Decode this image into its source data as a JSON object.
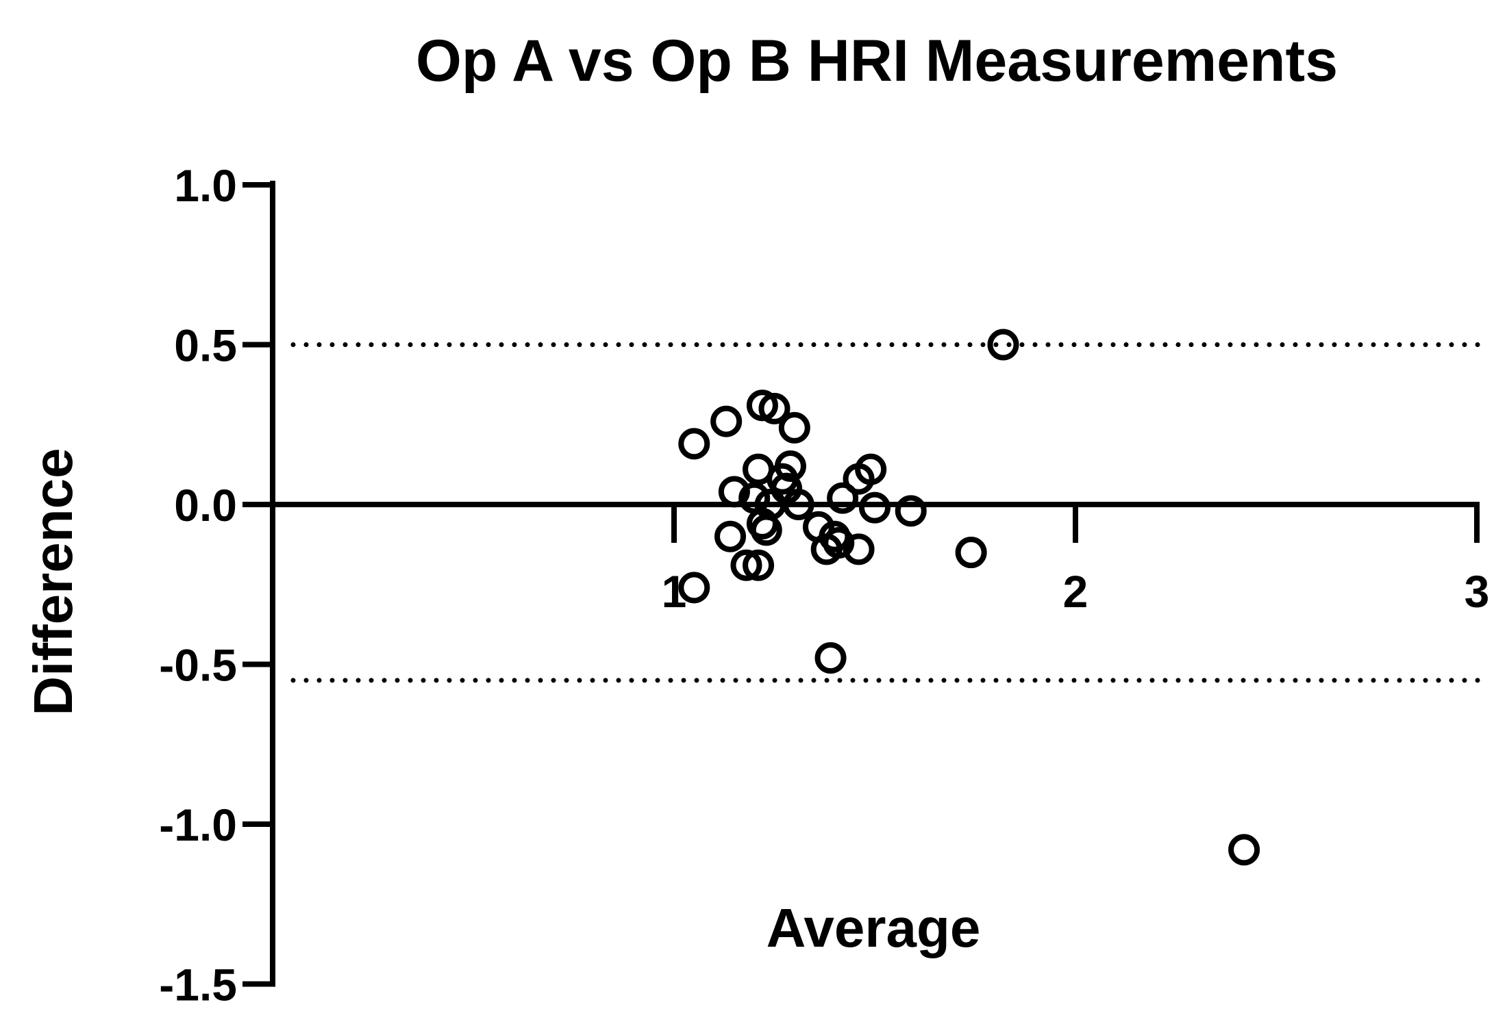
{
  "chart_data": {
    "type": "scatter",
    "title": "Op A vs Op B HRI Measurements",
    "xlabel": "Average",
    "ylabel": "Difference",
    "xlim": [
      0,
      3
    ],
    "ylim": [
      -1.5,
      1.0
    ],
    "x_ticks": [
      "1",
      "2",
      "3"
    ],
    "y_ticks": [
      "1.0",
      "0.5",
      "0.0",
      "-0.5",
      "-1.0",
      "-1.5"
    ],
    "y_tick_values": [
      1.0,
      0.5,
      0.0,
      -0.5,
      -1.0,
      -1.5
    ],
    "x_tick_values": [
      1,
      2,
      3
    ],
    "zero_line": 0.0,
    "limits_of_agreement": [
      0.5,
      -0.55
    ],
    "grid": false,
    "legend": "none",
    "series": [
      {
        "points": [
          {
            "x": 1.05,
            "y": 0.19
          },
          {
            "x": 1.13,
            "y": 0.26
          },
          {
            "x": 1.22,
            "y": 0.31
          },
          {
            "x": 1.25,
            "y": 0.3
          },
          {
            "x": 1.3,
            "y": 0.24
          },
          {
            "x": 1.21,
            "y": 0.11
          },
          {
            "x": 1.27,
            "y": 0.08
          },
          {
            "x": 1.29,
            "y": 0.12
          },
          {
            "x": 1.15,
            "y": 0.04
          },
          {
            "x": 1.2,
            "y": 0.02
          },
          {
            "x": 1.24,
            "y": 0.0
          },
          {
            "x": 1.28,
            "y": 0.05
          },
          {
            "x": 1.31,
            "y": 0.0
          },
          {
            "x": 1.22,
            "y": -0.06
          },
          {
            "x": 1.23,
            "y": -0.08
          },
          {
            "x": 1.14,
            "y": -0.1
          },
          {
            "x": 1.18,
            "y": -0.19
          },
          {
            "x": 1.21,
            "y": -0.19
          },
          {
            "x": 1.36,
            "y": -0.07
          },
          {
            "x": 1.38,
            "y": -0.14
          },
          {
            "x": 1.4,
            "y": -0.1
          },
          {
            "x": 1.41,
            "y": -0.12
          },
          {
            "x": 1.42,
            "y": 0.02
          },
          {
            "x": 1.46,
            "y": -0.14
          },
          {
            "x": 1.46,
            "y": 0.08
          },
          {
            "x": 1.49,
            "y": 0.11
          },
          {
            "x": 1.5,
            "y": -0.01
          },
          {
            "x": 1.59,
            "y": -0.02
          },
          {
            "x": 1.05,
            "y": -0.26
          },
          {
            "x": 1.39,
            "y": -0.48
          },
          {
            "x": 1.74,
            "y": -0.15
          },
          {
            "x": 1.82,
            "y": 0.5
          },
          {
            "x": 2.42,
            "y": -1.08
          }
        ]
      }
    ]
  }
}
